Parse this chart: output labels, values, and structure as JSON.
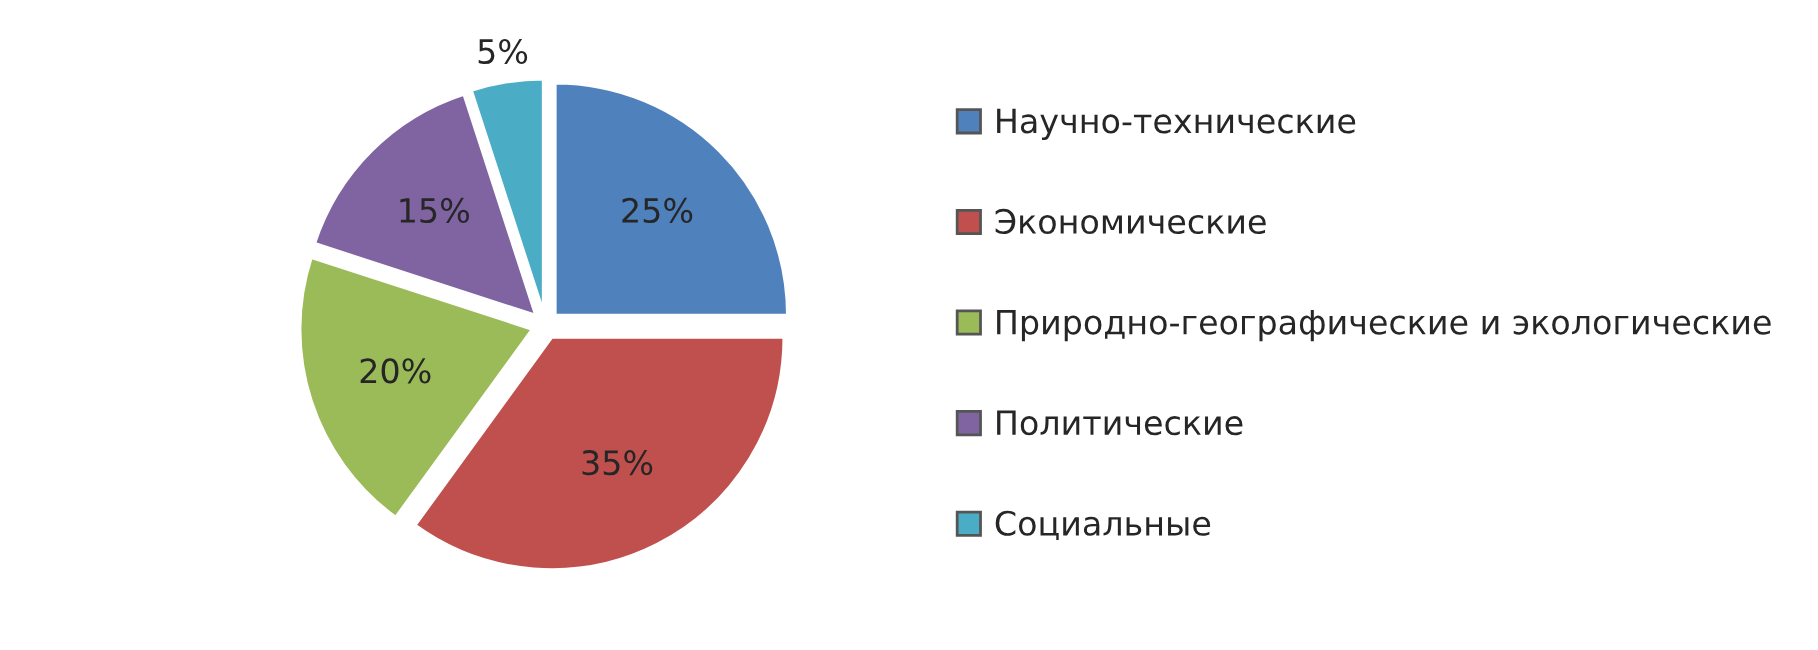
{
  "chart_data": {
    "type": "pie",
    "categories": [
      "Научно-технические",
      "Экономические",
      "Природно-географические и экологические",
      "Политические",
      "Социальные"
    ],
    "values": [
      25,
      35,
      20,
      15,
      5
    ],
    "value_labels": [
      "25%",
      "35%",
      "20%",
      "15%",
      "5%"
    ],
    "colors": [
      "#4f81bd",
      "#c0504d",
      "#9bbb59",
      "#8064a2",
      "#4bacc6"
    ],
    "legend": "right"
  }
}
